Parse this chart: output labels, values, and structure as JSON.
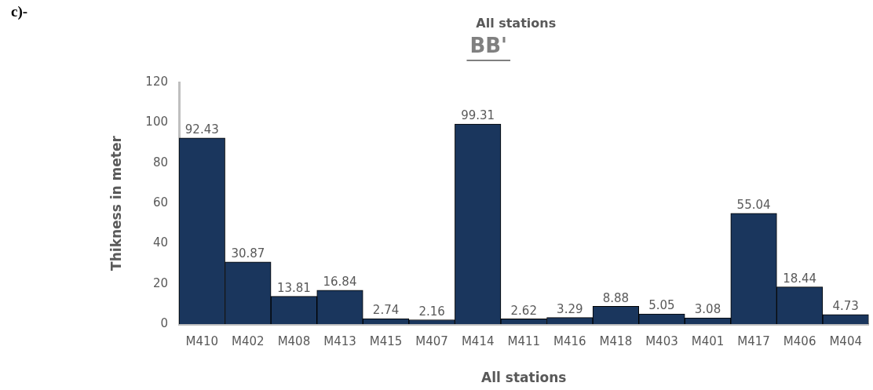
{
  "chart_data": {
    "type": "bar",
    "title": "All stations",
    "subtitle": "BB'",
    "xlabel": "All stations",
    "ylabel": "Thikness in meter",
    "annotations": [
      "c)-"
    ],
    "categories": [
      "M410",
      "M402",
      "M408",
      "M413",
      "M415",
      "M407",
      "M414",
      "M411",
      "M416",
      "M418",
      "M403",
      "M401",
      "M417",
      "M406",
      "M404"
    ],
    "values": [
      92.43,
      30.87,
      13.81,
      16.84,
      2.74,
      2.16,
      99.31,
      2.62,
      3.29,
      8.88,
      5.05,
      3.08,
      55.04,
      18.44,
      4.73
    ],
    "color": "#1a365d",
    "ylim": [
      0,
      120
    ],
    "yticks": [
      0,
      20,
      40,
      60,
      80,
      100,
      120
    ],
    "grid": false,
    "legend": false,
    "data_labels": true
  }
}
